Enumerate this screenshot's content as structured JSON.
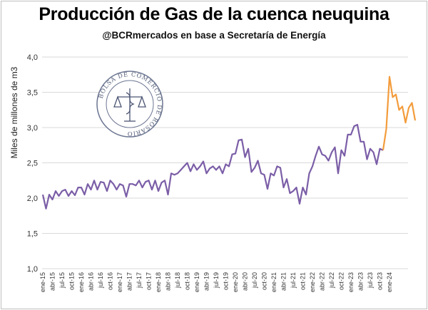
{
  "chart_data": {
    "type": "line",
    "title": "Producción de Gas de la cuenca neuquina",
    "subtitle": "@BCRmercados en base a Secretaría de Energía",
    "ylabel": "Miles de millones de m3",
    "xlabel": "",
    "ylim": [
      1.0,
      4.0
    ],
    "y_ticks": [
      "1,0",
      "1,5",
      "2,0",
      "2,5",
      "3,0",
      "3,5",
      "4,0"
    ],
    "grid": true,
    "x_tick_labels": [
      "ene-15",
      "abr-15",
      "jul-15",
      "oct-15",
      "ene-16",
      "abr-16",
      "jul-16",
      "oct-16",
      "ene-17",
      "abr-17",
      "jul-17",
      "oct-17",
      "ene-18",
      "abr-18",
      "jul-18",
      "oct-18",
      "ene-19",
      "abr-19",
      "jul-19",
      "oct-19",
      "ene-20",
      "abr-20",
      "jul-20",
      "oct-20",
      "ene-21",
      "abr-21",
      "jul-21",
      "oct-21",
      "ene-22",
      "abr-22",
      "jul-22",
      "oct-22",
      "ene-23",
      "abr-23",
      "jul-23",
      "oct-23",
      "ene-24"
    ],
    "seal_text": "BOLSA DE COMERCIO DE ROSARIO",
    "series": [
      {
        "color": "#7b5ea7",
        "x_start": "ene-15",
        "values": [
          2.05,
          1.85,
          2.05,
          1.98,
          2.1,
          2.03,
          2.1,
          2.12,
          2.03,
          2.1,
          2.04,
          2.15,
          2.15,
          2.05,
          2.2,
          2.12,
          2.25,
          2.12,
          2.23,
          2.22,
          2.1,
          2.25,
          2.2,
          2.12,
          2.2,
          2.18,
          2.02,
          2.2,
          2.2,
          2.18,
          2.25,
          2.15,
          2.23,
          2.25,
          2.12,
          2.25,
          2.1,
          2.22,
          2.25,
          2.05,
          2.35,
          2.33,
          2.35,
          2.4,
          2.45,
          2.5,
          2.38,
          2.48,
          2.4,
          2.45,
          2.52,
          2.35,
          2.42,
          2.45,
          2.4,
          2.45,
          2.35,
          2.48,
          2.45,
          2.62,
          2.63,
          2.82,
          2.83,
          2.58,
          2.7,
          2.37,
          2.43,
          2.53,
          2.35,
          2.33,
          2.13,
          2.35,
          2.32,
          2.45,
          2.43,
          2.15,
          2.27,
          2.07,
          2.1,
          2.15,
          1.92,
          2.15,
          2.05,
          2.35,
          2.45,
          2.6,
          2.73,
          2.62,
          2.6,
          2.53,
          2.65,
          2.72,
          2.35,
          2.68,
          2.6,
          2.9,
          2.9,
          3.02,
          3.04,
          2.8,
          2.8,
          2.55,
          2.7,
          2.65,
          2.48,
          2.7,
          2.68
        ]
      },
      {
        "color": "#f39c3c",
        "x_start": "nov-23",
        "values": [
          2.68,
          2.98,
          3.72,
          3.43,
          3.47,
          3.25,
          3.3,
          3.07,
          3.28,
          3.35,
          3.1
        ]
      }
    ]
  }
}
